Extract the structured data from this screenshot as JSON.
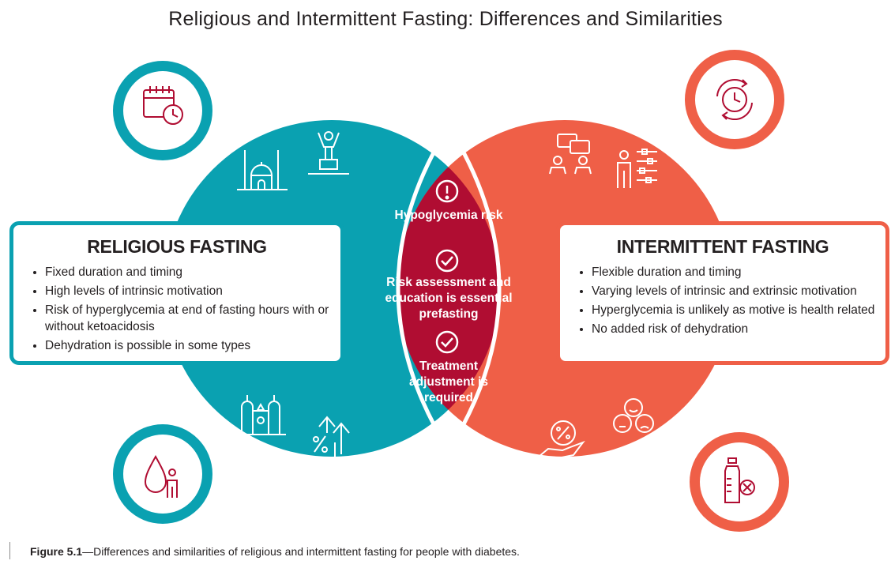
{
  "title": "Religious and Intermittent Fasting: Differences and Similarities",
  "colors": {
    "religious": "#0aa1b1",
    "intermittent": "#ef5f47",
    "overlap": "#b00d32"
  },
  "religious": {
    "heading": "RELIGIOUS FASTING",
    "items": [
      "Fixed duration and timing",
      "High levels of intrinsic motivation",
      "Risk of hyperglycemia at end of fasting hours with or without ketoacidosis",
      "Dehydration is possible in some types"
    ],
    "icons": [
      "calendar-clock-icon",
      "mosque-icon",
      "person-on-podium-icon",
      "synagogue-icon",
      "percent-arrows-up-icon",
      "water-drop-person-icon"
    ]
  },
  "intermittent": {
    "heading": "INTERMITTENT FASTING",
    "items": [
      "Flexible duration and timing",
      "Varying levels of intrinsic and extrinsic motivation",
      "Hyperglycemia is unlikely as motive is health related",
      "No added risk of dehydration"
    ],
    "icons": [
      "clock-cycle-icon",
      "people-discussion-icon",
      "person-settings-icon",
      "hand-percent-icon",
      "emoji-faces-icon",
      "bottle-cross-icon"
    ]
  },
  "overlap": {
    "items": [
      {
        "icon": "alert-icon",
        "text": "Hypoglycemia risk"
      },
      {
        "icon": "check-icon",
        "text": "Risk assessment and education is essential prefasting"
      },
      {
        "icon": "check-icon",
        "text": "Treatment adjustment is required"
      }
    ]
  },
  "caption": {
    "label": "Figure 5.1",
    "text": "—Differences and similarities of religious and intermittent fasting for people with diabetes."
  }
}
